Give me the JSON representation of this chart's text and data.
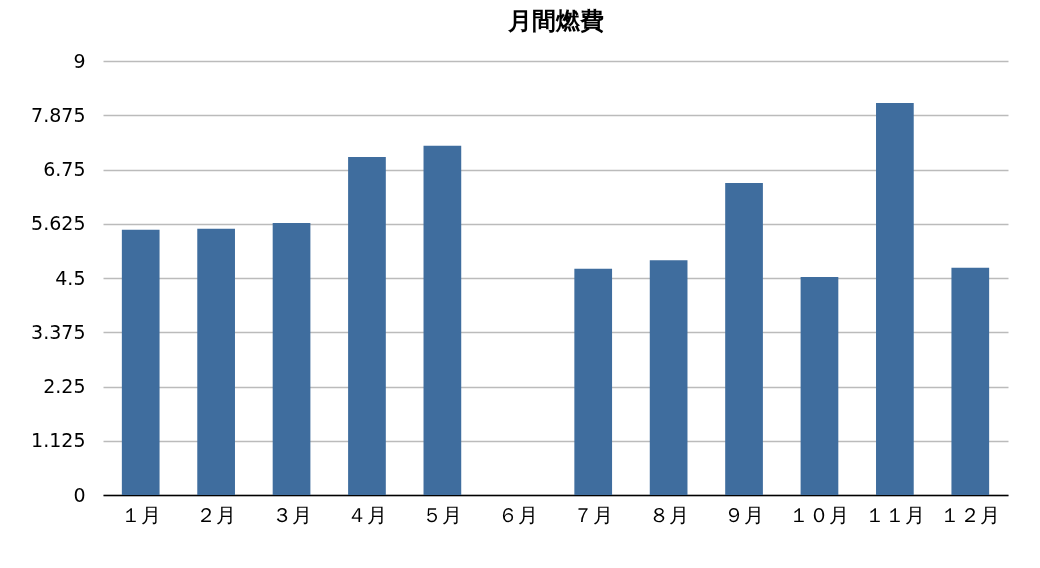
{
  "chart_data": {
    "type": "bar",
    "title": "月間燃費",
    "categories": [
      "１月",
      "２月",
      "３月",
      "４月",
      "５月",
      "６月",
      "７月",
      "８月",
      "９月",
      "１０月",
      "１１月",
      "１２月"
    ],
    "values": [
      5.5,
      5.52,
      5.64,
      7.01,
      7.24,
      null,
      4.69,
      4.87,
      6.47,
      4.52,
      8.13,
      4.71
    ],
    "color": "#3f6d9e",
    "ylim": [
      0,
      9
    ],
    "yticks": [
      0,
      1.125,
      2.25,
      3.375,
      4.5,
      5.625,
      6.75,
      7.875,
      9
    ],
    "grid": "y"
  }
}
